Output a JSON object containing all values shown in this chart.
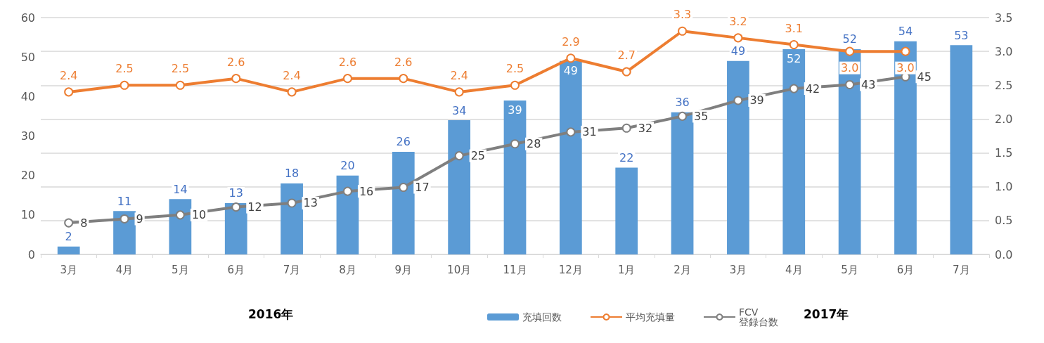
{
  "chart_data": {
    "type": "bar",
    "categories": [
      "3月",
      "4月",
      "5月",
      "6月",
      "7月",
      "8月",
      "9月",
      "10月",
      "11月",
      "12月",
      "1月",
      "2月",
      "3月",
      "4月",
      "5月",
      "6月",
      "7月"
    ],
    "series": [
      {
        "name": "充填回数",
        "type": "bar",
        "color": "#5b9bd5",
        "values": [
          2,
          11,
          14,
          13,
          18,
          20,
          26,
          34,
          39,
          49,
          22,
          36,
          49,
          52,
          52,
          54,
          53
        ],
        "data_labels": true
      },
      {
        "name": "平均充填量",
        "type": "line",
        "axis": "y2",
        "color": "#ed7d31",
        "values": [
          2.4,
          2.5,
          2.5,
          2.6,
          2.4,
          2.6,
          2.6,
          2.4,
          2.5,
          2.9,
          2.7,
          3.3,
          3.2,
          3.1,
          3.0,
          3.0,
          null
        ],
        "value_labels": [
          "2.4",
          "2.5",
          "2.5",
          "2.6",
          "2.4",
          "2.6",
          "2.6",
          "2.4",
          "2.5",
          "2.9",
          "2.7",
          "3.3",
          "3.2",
          "3.1",
          "3.0",
          "3.0",
          null
        ]
      },
      {
        "name": "FCV\n登録台数",
        "type": "line",
        "color": "#7f7f7f",
        "values": [
          8,
          9,
          10,
          12,
          13,
          16,
          17,
          25,
          28,
          31,
          32,
          35,
          39,
          42,
          43,
          45,
          null
        ],
        "data_labels": true
      }
    ],
    "ylim": [
      0,
      60
    ],
    "yticks": [
      0,
      10,
      20,
      30,
      40,
      50,
      60
    ],
    "y2lim": [
      0,
      3.5
    ],
    "y2ticks": [
      {
        "value": 0,
        "label": "0.0"
      },
      {
        "value": 0.5,
        "label": "0.5"
      },
      {
        "value": 1,
        "label": "1.0"
      },
      {
        "value": 1.5,
        "label": "1.5"
      },
      {
        "value": 2,
        "label": "2.0"
      },
      {
        "value": 2.5,
        "label": "2.5"
      },
      {
        "value": 3,
        "label": "3.0"
      },
      {
        "value": 3.5,
        "label": "3.5"
      }
    ],
    "grid": "y",
    "legend": "bottom",
    "marker": "circle",
    "line_style": "solid",
    "annotations": [
      "2016年",
      "2017年"
    ]
  }
}
